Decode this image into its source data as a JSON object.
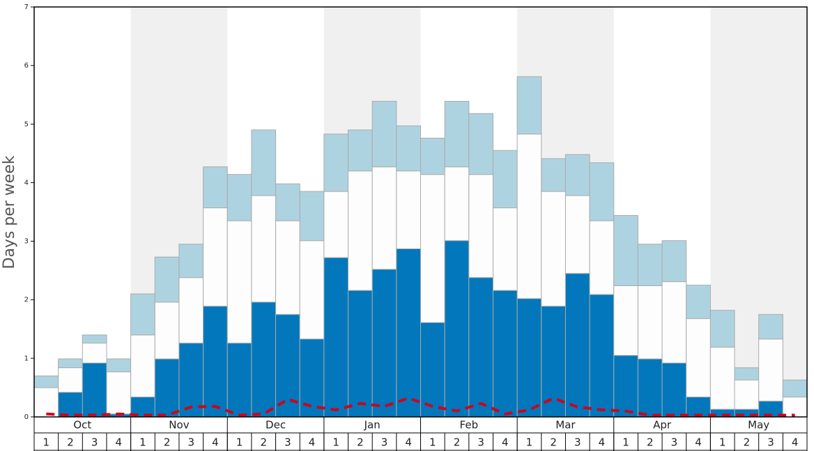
{
  "chart_data": {
    "type": "bar",
    "stacked": true,
    "y_label": "Days per week",
    "groups": [
      "Oct",
      "Nov",
      "Dec",
      "Jan",
      "Feb",
      "Mar",
      "Apr",
      "May"
    ],
    "categories": [
      "1",
      "2",
      "3",
      "4",
      "1",
      "2",
      "3",
      "4",
      "1",
      "2",
      "3",
      "4",
      "1",
      "2",
      "3",
      "4",
      "1",
      "2",
      "3",
      "4",
      "1",
      "2",
      "3",
      "4",
      "1",
      "2",
      "3",
      "4",
      "1",
      "2",
      "3",
      "4"
    ],
    "series": [
      {
        "color": "#0277bb",
        "values": [
          0,
          0.42,
          0.92,
          0.05,
          0.34,
          0.99,
          1.26,
          1.89,
          1.26,
          1.96,
          1.75,
          1.33,
          2.72,
          2.16,
          2.52,
          2.87,
          1.61,
          3.01,
          2.38,
          2.16,
          2.02,
          1.89,
          2.45,
          2.09,
          1.05,
          0.99,
          0.92,
          0.34,
          0.13,
          0.13,
          0.27,
          0
        ]
      },
      {
        "color": "#fdfdfd",
        "values": [
          0.5,
          0.42,
          0.34,
          0.72,
          1.06,
          0.97,
          1.12,
          1.68,
          2.09,
          1.82,
          1.6,
          1.68,
          1.13,
          2.04,
          1.75,
          1.33,
          2.53,
          1.26,
          1.76,
          1.41,
          2.81,
          1.96,
          1.33,
          1.26,
          1.19,
          1.25,
          1.39,
          1.34,
          1.06,
          0.5,
          1.06,
          0.34
        ]
      },
      {
        "color": "#aed3e0",
        "values": [
          0.2,
          0.15,
          0.14,
          0.22,
          0.7,
          0.77,
          0.57,
          0.7,
          0.79,
          1.12,
          0.63,
          0.84,
          0.98,
          0.7,
          1.12,
          0.77,
          0.62,
          1.12,
          1.04,
          0.98,
          0.98,
          0.56,
          0.7,
          0.99,
          1.2,
          0.71,
          0.7,
          0.57,
          0.63,
          0.21,
          0.42,
          0.29
        ]
      }
    ],
    "line": {
      "color": "#d0021b",
      "values": [
        0.05,
        0.03,
        0.03,
        0.05,
        0.03,
        0.03,
        0.17,
        0.18,
        0.03,
        0.05,
        0.3,
        0.18,
        0.12,
        0.23,
        0.18,
        0.32,
        0.18,
        0.1,
        0.23,
        0.05,
        0.12,
        0.32,
        0.17,
        0.12,
        0.1,
        0.03,
        0.03,
        0.03,
        0.03,
        0.03,
        0.03,
        0.03
      ]
    },
    "band_color": "#f0f0f0",
    "ylim": [
      0,
      7
    ],
    "yticks": [
      0,
      1,
      2,
      3,
      4,
      5,
      6,
      7
    ]
  }
}
